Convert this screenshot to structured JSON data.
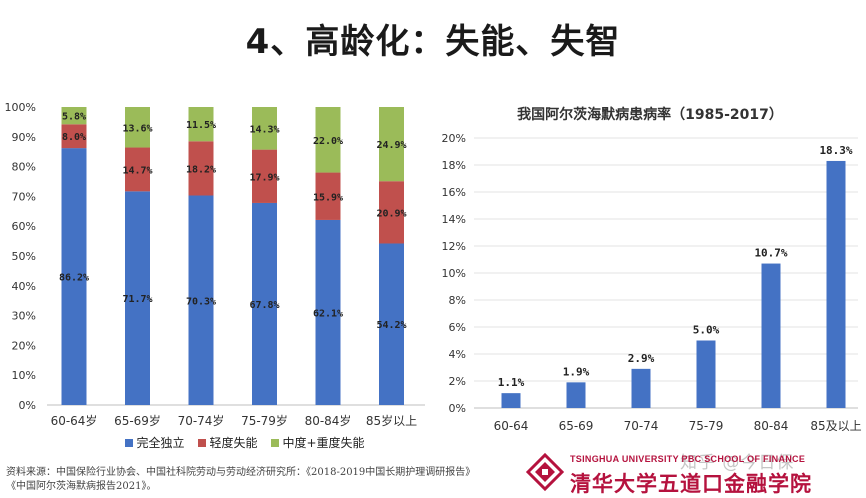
{
  "slide_title": "4、高龄化：失能、失智",
  "chart_data": [
    {
      "type": "bar",
      "stacked": true,
      "percent": true,
      "categories": [
        "60-64岁",
        "65-69岁",
        "70-74岁",
        "75-79岁",
        "80-84岁",
        "85岁以上"
      ],
      "series": [
        {
          "name": "完全独立",
          "color": "#4472c4",
          "values": [
            86.2,
            71.7,
            70.3,
            67.8,
            62.1,
            54.2
          ],
          "labels": [
            "86.2%",
            "71.7%",
            "70.3%",
            "67.8%",
            "62.1%",
            "54.2%"
          ]
        },
        {
          "name": "轻度失能",
          "color": "#c0504d",
          "values": [
            8.0,
            14.7,
            18.2,
            17.9,
            15.9,
            20.9
          ],
          "labels": [
            "8.0%",
            "14.7%",
            "18.2%",
            "17.9%",
            "15.9%",
            "20.9%"
          ]
        },
        {
          "name": "中度+重度失能",
          "color": "#9bbb59",
          "values": [
            5.8,
            13.6,
            11.5,
            14.3,
            22.0,
            24.9
          ],
          "labels": [
            "5.8%",
            "13.6%",
            "11.5%",
            "14.3%",
            "22.0%",
            "24.9%"
          ]
        }
      ],
      "yticks": [
        "0%",
        "10%",
        "20%",
        "30%",
        "40%",
        "50%",
        "60%",
        "70%",
        "80%",
        "90%",
        "100%"
      ],
      "ylim": [
        0,
        100
      ],
      "legend_position": "bottom"
    },
    {
      "type": "bar",
      "title": "我国阿尔茨海默病患病率（1985-2017）",
      "categories": [
        "60-64",
        "65-69",
        "70-74",
        "75-79",
        "80-84",
        "85及以上"
      ],
      "values": [
        1.1,
        1.9,
        2.9,
        5.0,
        10.7,
        18.3
      ],
      "labels": [
        "1.1%",
        "1.9%",
        "2.9%",
        "5.0%",
        "10.7%",
        "18.3%"
      ],
      "color": "#4472c4",
      "yticks": [
        "0%",
        "2%",
        "4%",
        "6%",
        "8%",
        "10%",
        "12%",
        "14%",
        "16%",
        "18%",
        "20%"
      ],
      "ylim": [
        0,
        20
      ],
      "grid": true
    }
  ],
  "source_lines": [
    "资料来源：中国保险行业协会、中国社科院劳动与劳动经济研究所：《2018-2019中国长期护理调研报告》",
    "《中国阿尔茨海默病报告2021》。"
  ],
  "logo": {
    "en": "TSINGHUA UNIVERSITY PBC SCHOOL OF FINANCE",
    "cn": "清华大学五道口金融学院"
  },
  "watermark": "知乎 @今日保"
}
